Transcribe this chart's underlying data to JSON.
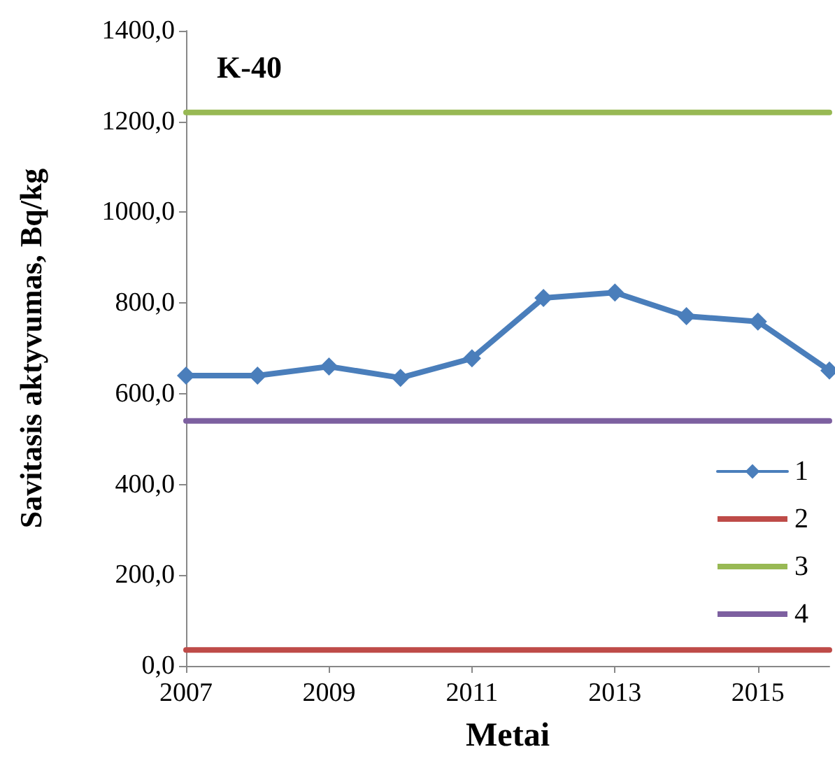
{
  "chart_data": {
    "type": "line",
    "title": "K-40",
    "xlabel": "Metai",
    "ylabel": "Savitasis aktyvumas, Bq/kg",
    "x": [
      2007,
      2008,
      2009,
      2010,
      2011,
      2012,
      2013,
      2014,
      2015,
      2016
    ],
    "series": [
      {
        "name": "1",
        "color": "#4a7ebb",
        "values": [
          640,
          640,
          660,
          635,
          678,
          811,
          823,
          771,
          759,
          651
        ]
      },
      {
        "name": "2",
        "color": "#be4b48",
        "values": [
          35,
          35,
          35,
          35,
          35,
          35,
          35,
          35,
          35,
          35
        ],
        "marker": "none"
      },
      {
        "name": "3",
        "color": "#98b954",
        "values": [
          1220,
          1220,
          1220,
          1220,
          1220,
          1220,
          1220,
          1220,
          1220,
          1220
        ],
        "marker": "none"
      },
      {
        "name": "4",
        "color": "#7d60a0",
        "values": [
          540,
          540,
          540,
          540,
          540,
          540,
          540,
          540,
          540,
          540
        ],
        "marker": "none"
      }
    ],
    "xlim": [
      2007,
      2016
    ],
    "xticks": [
      2007,
      2009,
      2011,
      2013,
      2015
    ],
    "ylim": [
      0,
      1400
    ],
    "yticks": [
      {
        "value": 0,
        "label": "0,0"
      },
      {
        "value": 200,
        "label": "200,0"
      },
      {
        "value": 400,
        "label": "400,0"
      },
      {
        "value": 600,
        "label": "600,0"
      },
      {
        "value": 800,
        "label": "800,0"
      },
      {
        "value": 1000,
        "label": "1000,0"
      },
      {
        "value": 1200,
        "label": "1200,0"
      },
      {
        "value": 1400,
        "label": "1400,0"
      }
    ],
    "grid": false,
    "legend": "bottom right",
    "marker": "diamond",
    "line_style": "solid"
  }
}
